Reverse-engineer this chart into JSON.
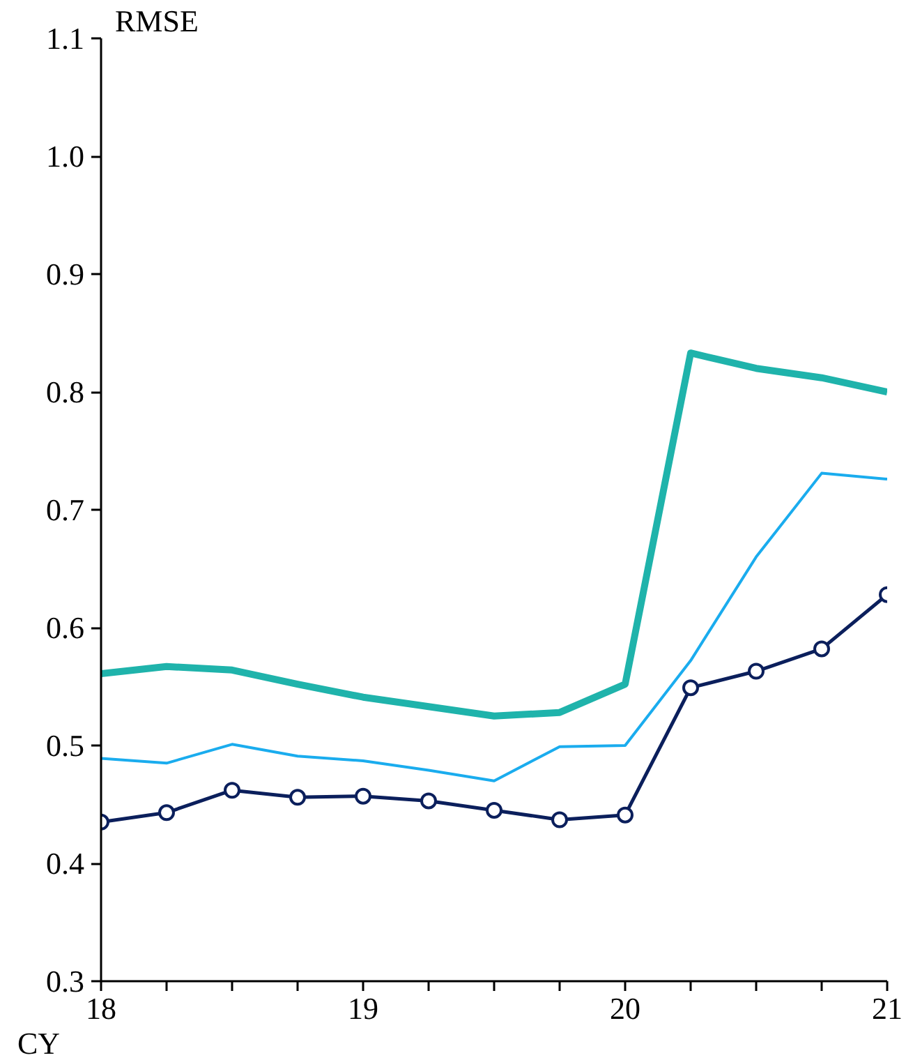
{
  "chart_data": {
    "type": "line",
    "ylabel": "RMSE",
    "xlabel": "CY",
    "x": [
      18,
      18.25,
      18.5,
      18.75,
      19,
      19.25,
      19.5,
      19.75,
      20,
      20.25,
      20.5,
      20.75,
      21
    ],
    "xlim": [
      18,
      21
    ],
    "xticks": [
      18,
      {
        "value": 18.25,
        "label": null
      },
      {
        "value": 18.5,
        "label": null
      },
      {
        "value": 18.75,
        "label": null
      },
      19,
      {
        "value": 19.25,
        "label": null
      },
      {
        "value": 19.5,
        "label": null
      },
      {
        "value": 19.75,
        "label": null
      },
      20,
      {
        "value": 20.25,
        "label": null
      },
      {
        "value": 20.5,
        "label": null
      },
      {
        "value": 20.75,
        "label": null
      },
      21
    ],
    "ylim": [
      0.3,
      1.1
    ],
    "yticks": [
      {
        "value": 0.3,
        "label": "0.3"
      },
      {
        "value": 0.4,
        "label": "0.4"
      },
      {
        "value": 0.5,
        "label": "0.5"
      },
      {
        "value": 0.6,
        "label": "0.6"
      },
      {
        "value": 0.7,
        "label": "0.7"
      },
      {
        "value": 0.8,
        "label": "0.8"
      },
      {
        "value": 0.9,
        "label": "0.9"
      },
      {
        "value": 1.0,
        "label": "1.0"
      },
      {
        "value": 1.1,
        "label": "1.1"
      }
    ],
    "grid": false,
    "series": [
      {
        "color": "#1fb3ab",
        "marker": "none",
        "values": [
          0.561,
          0.567,
          0.564,
          0.552,
          0.541,
          0.533,
          0.525,
          0.528,
          0.552,
          0.833,
          0.82,
          0.812,
          0.8
        ]
      },
      {
        "color": "#1aacee",
        "marker": "none",
        "values": [
          0.489,
          0.485,
          0.501,
          0.491,
          0.487,
          0.479,
          0.47,
          0.499,
          0.5,
          0.572,
          0.66,
          0.731,
          0.726
        ]
      },
      {
        "color": "#0b1f5c",
        "marker": "circle",
        "values": [
          0.435,
          0.443,
          0.462,
          0.456,
          0.457,
          0.453,
          0.445,
          0.437,
          0.441,
          0.549,
          0.563,
          0.582,
          0.628
        ]
      }
    ]
  }
}
